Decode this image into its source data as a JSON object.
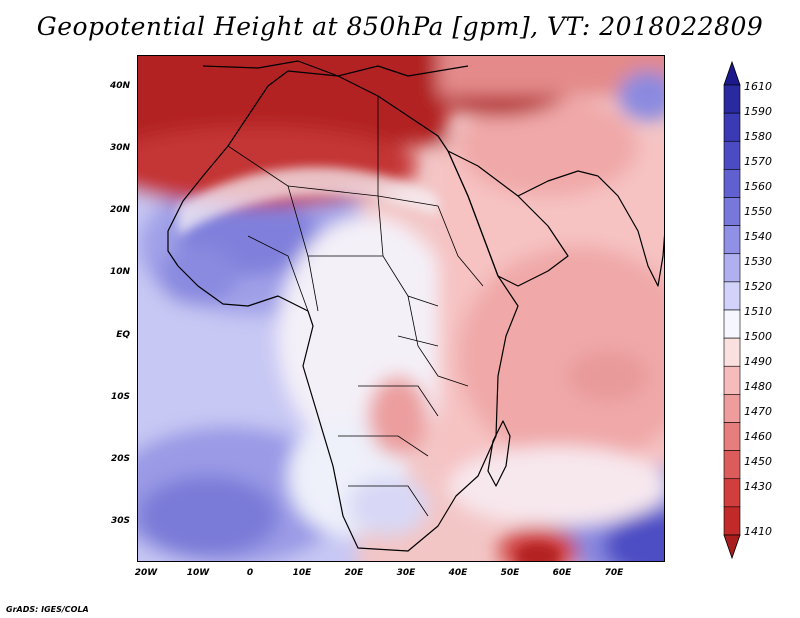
{
  "title": "Geopotential Height at 850hPa [gpm], VT: 2018022809",
  "footer": "GrADS: IGES/COLA",
  "lat_labels": [
    "40N",
    "30N",
    "20N",
    "10N",
    "EQ",
    "10S",
    "20S",
    "30S"
  ],
  "lat_values": [
    40,
    30,
    20,
    10,
    0,
    -10,
    -20,
    -30
  ],
  "lon_labels": [
    "20W",
    "10W",
    "0",
    "10E",
    "20E",
    "30E",
    "40E",
    "50E",
    "60E",
    "70E"
  ],
  "lon_values": [
    -20,
    -10,
    0,
    10,
    20,
    30,
    40,
    50,
    60,
    70
  ],
  "map_extent": {
    "lon": [
      -22,
      80
    ],
    "lat": [
      -37,
      45
    ]
  },
  "colorbar": {
    "labels": [
      "1610",
      "1590",
      "1580",
      "1570",
      "1560",
      "1550",
      "1540",
      "1530",
      "1520",
      "1510",
      "1500",
      "1490",
      "1480",
      "1470",
      "1460",
      "1450",
      "1430",
      "1410"
    ],
    "colors": [
      "#1a1a8c",
      "#2a2aa0",
      "#3a3ab4",
      "#4b4bc4",
      "#6060d0",
      "#7878dc",
      "#9090e6",
      "#b0b0f0",
      "#d2d2fa",
      "#f6f6ff",
      "#fbe0e0",
      "#f6bcbc",
      "#ee9c9c",
      "#e67e7e",
      "#dc5c5c",
      "#d23e3e",
      "#c22a2a",
      "#a81e1e"
    ]
  }
}
